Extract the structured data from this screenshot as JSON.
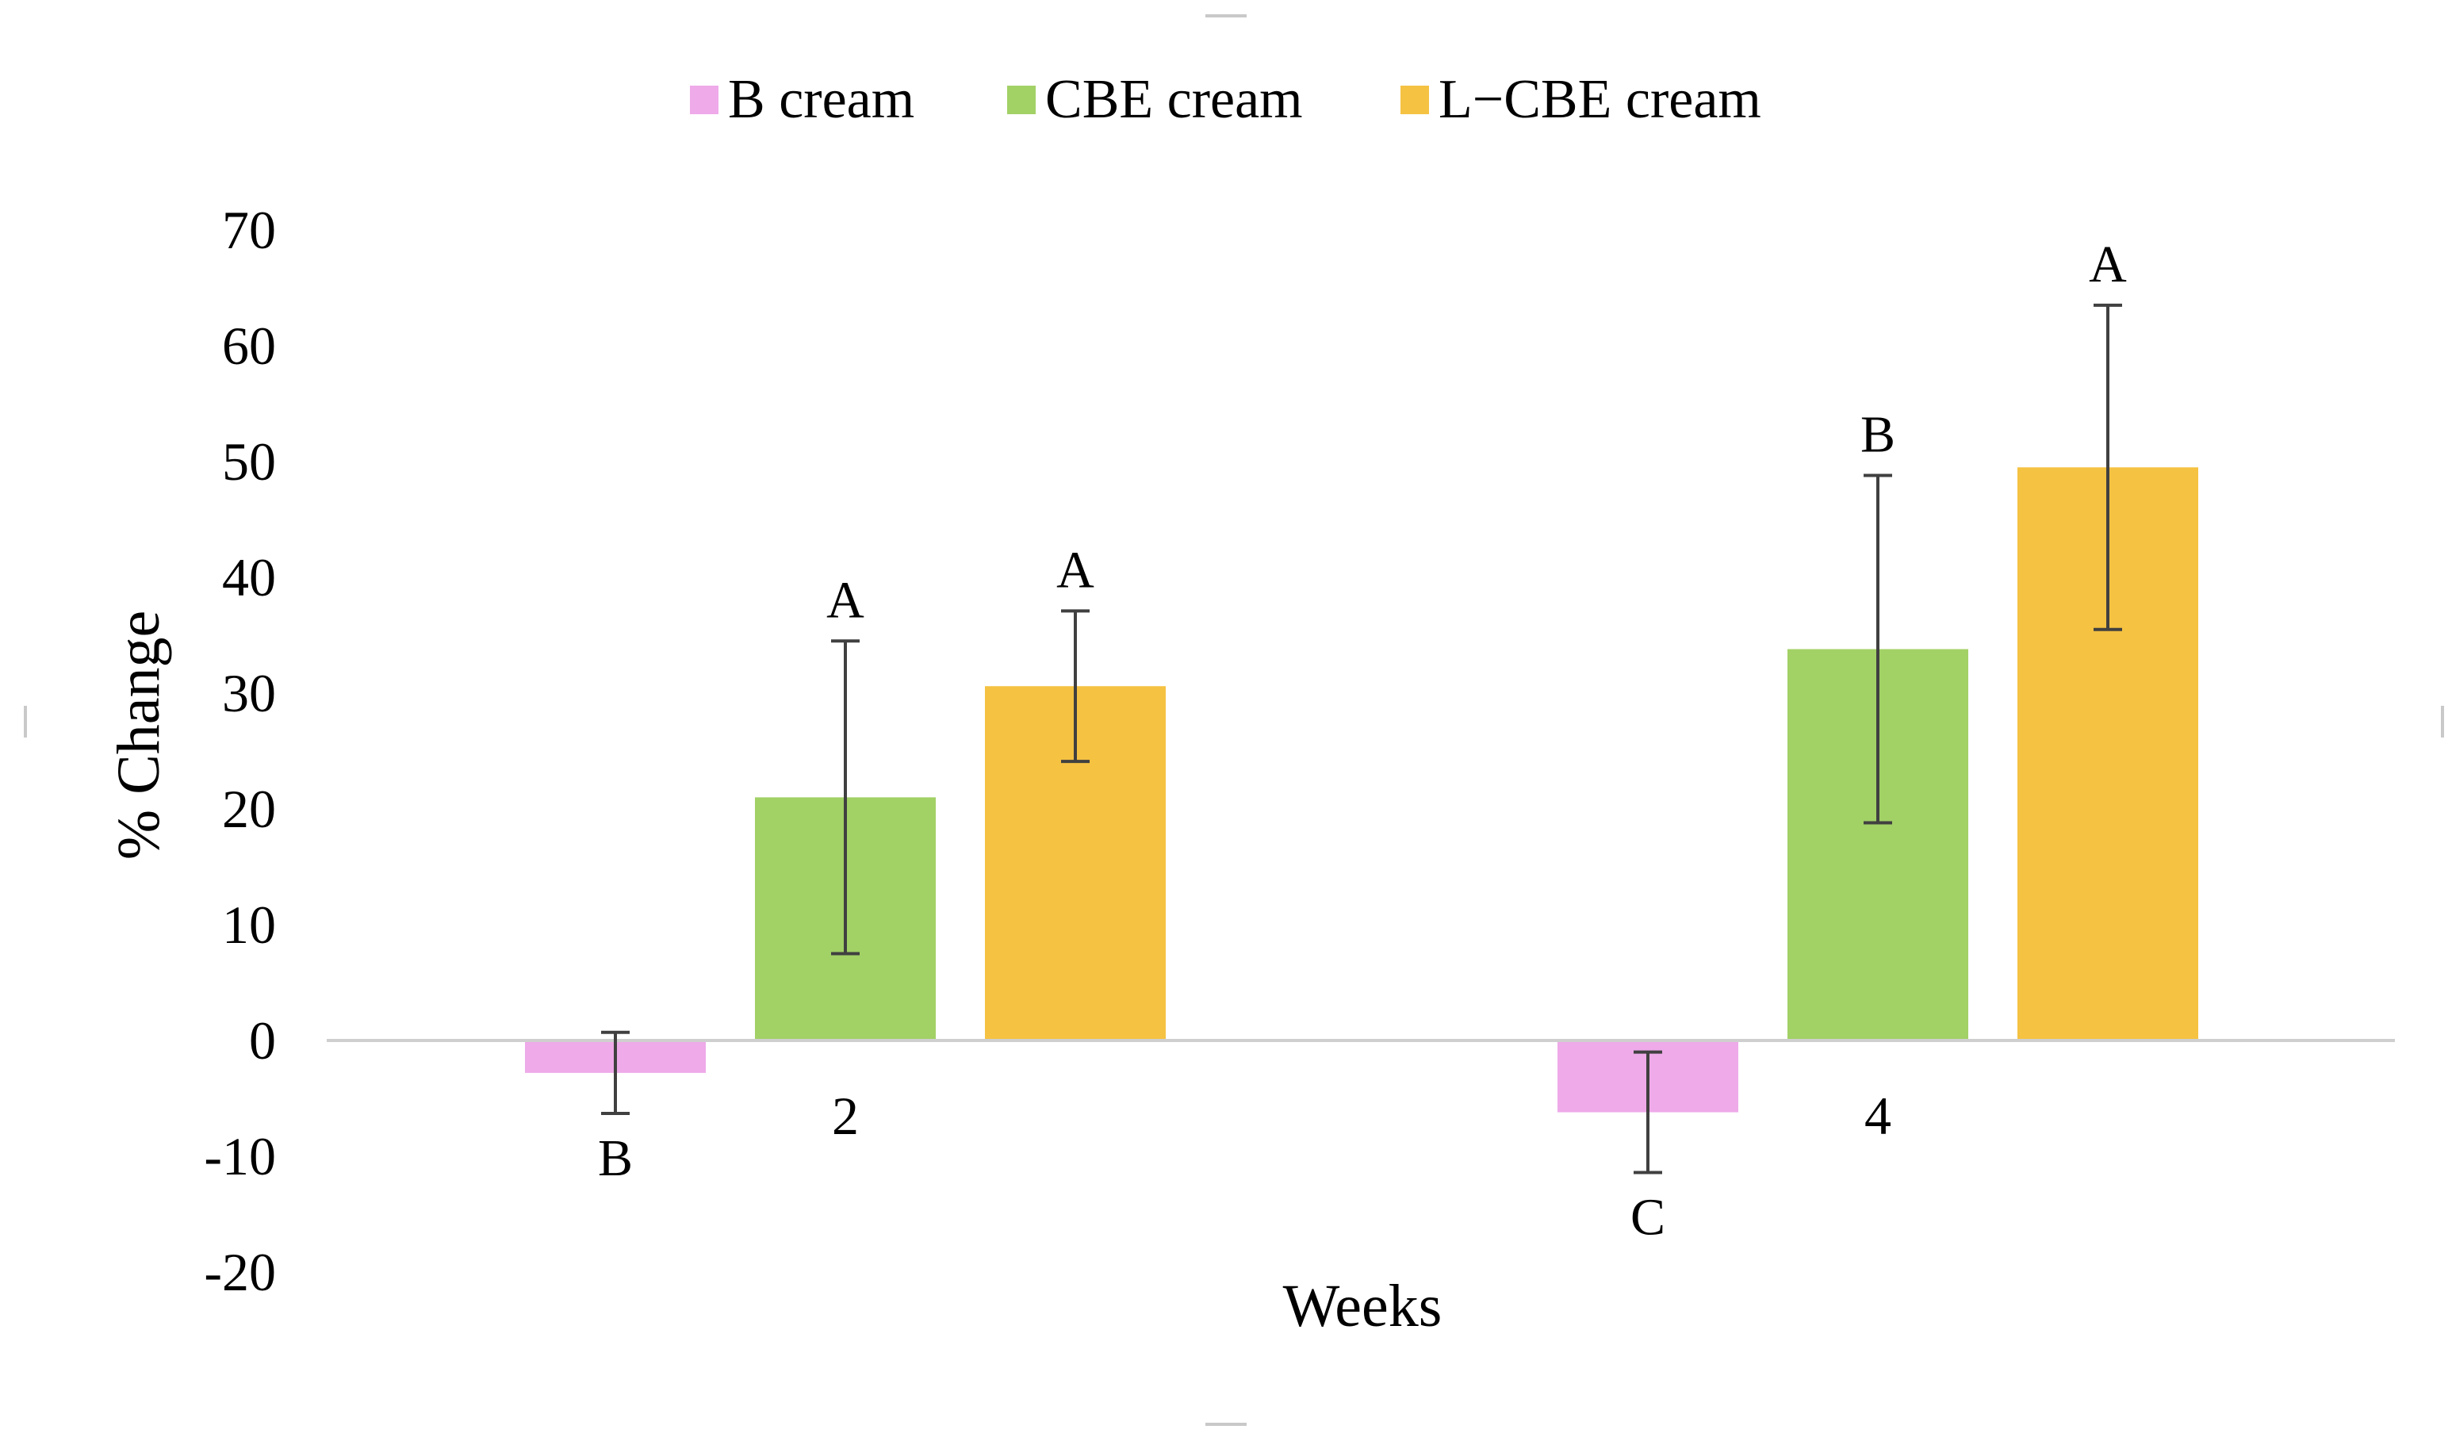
{
  "chart_data": {
    "type": "bar",
    "title": "",
    "xlabel": "Weeks",
    "ylabel": "% Change",
    "ylim": [
      -20,
      70
    ],
    "yticks": [
      70,
      60,
      50,
      40,
      30,
      20,
      10,
      0,
      -10,
      -20
    ],
    "categories": [
      "2",
      "4"
    ],
    "grid": false,
    "legend_position": "top",
    "series": [
      {
        "name": "B cream",
        "color": "#eeaae9",
        "values": [
          -2.8,
          -6.2
        ],
        "error": [
          3.5,
          5.2
        ],
        "significance": [
          "B",
          "C"
        ]
      },
      {
        "name": "CBE cream",
        "color": "#a2d166",
        "values": [
          21,
          33.8
        ],
        "error": [
          13.5,
          15
        ],
        "significance": [
          "A",
          "B"
        ]
      },
      {
        "name": "L−CBE cream",
        "color": "#f5c242",
        "values": [
          30.6,
          49.5
        ],
        "error": [
          6.5,
          14
        ],
        "significance": [
          "A",
          "A"
        ]
      }
    ]
  }
}
